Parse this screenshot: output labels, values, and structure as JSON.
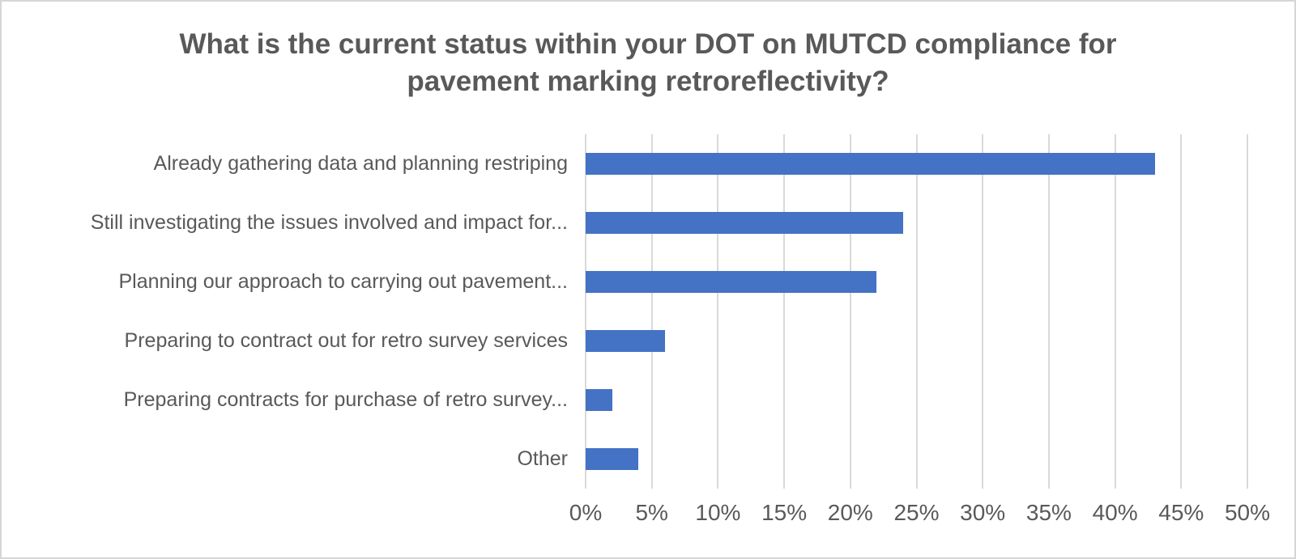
{
  "frame": {
    "background": "#ffffff",
    "border_color": "#d6d6d6"
  },
  "chart_data": {
    "type": "bar",
    "orientation": "horizontal",
    "title": "What is the current status within your DOT on MUTCD compliance for pavement marking retroreflectivity?",
    "categories": [
      "Already gathering data and planning restriping",
      "Still investigating the issues involved and impact for...",
      "Planning our approach to carrying out pavement...",
      "Preparing to contract out for retro survey services",
      "Preparing contracts for purchase of retro survey...",
      "Other"
    ],
    "values": [
      43,
      24,
      22,
      6,
      2,
      4
    ],
    "value_unit": "%",
    "xlabel": "",
    "ylabel": "",
    "xlim": [
      0,
      50
    ],
    "x_tick_step": 5,
    "x_tick_labels": [
      "0%",
      "5%",
      "10%",
      "15%",
      "20%",
      "25%",
      "30%",
      "35%",
      "40%",
      "45%",
      "50%"
    ],
    "grid": true,
    "legend": "none",
    "colors": {
      "bar": "#4472c4",
      "gridline": "#d9d9d9",
      "title_text": "#595959",
      "axis_text": "#595959"
    }
  }
}
